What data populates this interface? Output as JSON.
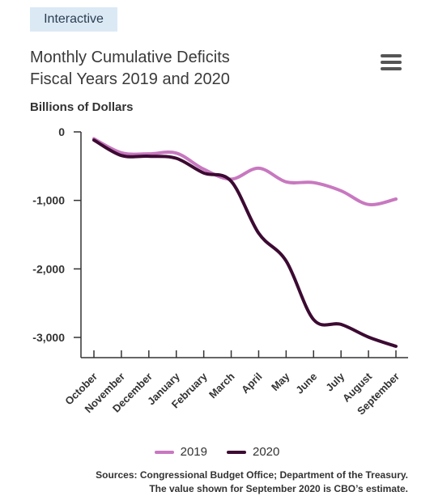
{
  "badge": "Interactive",
  "title_line1": "Monthly Cumulative Deficits",
  "title_line2": "Fiscal Years 2019 and 2020",
  "menu_icon": "hamburger-menu-icon",
  "sources_line1": "Sources: Congressional Budget Office; Department of the Treasury.",
  "sources_line2": "The value shown for September 2020 is CBO’s estimate.",
  "colors": {
    "2019": "#c878c0",
    "2020": "#3c0a32"
  },
  "chart_data": {
    "type": "line",
    "title": "Monthly Cumulative Deficits Fiscal Years 2019 and 2020",
    "ylabel": "Billions of Dollars",
    "xlabel": "",
    "categories": [
      "October",
      "November",
      "December",
      "January",
      "February",
      "March",
      "April",
      "May",
      "June",
      "July",
      "August",
      "September"
    ],
    "ylim": [
      -3250,
      0
    ],
    "yticks": [
      0,
      -1000,
      -2000,
      -3000
    ],
    "ytick_labels": [
      "0",
      "-1,000",
      "-2,000",
      "-3,000"
    ],
    "legend_position": "bottom-center",
    "grid": false,
    "series": [
      {
        "name": "2019",
        "values": [
          -100,
          -305,
          -320,
          -310,
          -545,
          -690,
          -530,
          -730,
          -740,
          -860,
          -1060,
          -980
        ]
      },
      {
        "name": "2020",
        "values": [
          -120,
          -345,
          -355,
          -385,
          -600,
          -720,
          -1480,
          -1885,
          -2740,
          -2810,
          -2995,
          -3130
        ]
      }
    ]
  }
}
